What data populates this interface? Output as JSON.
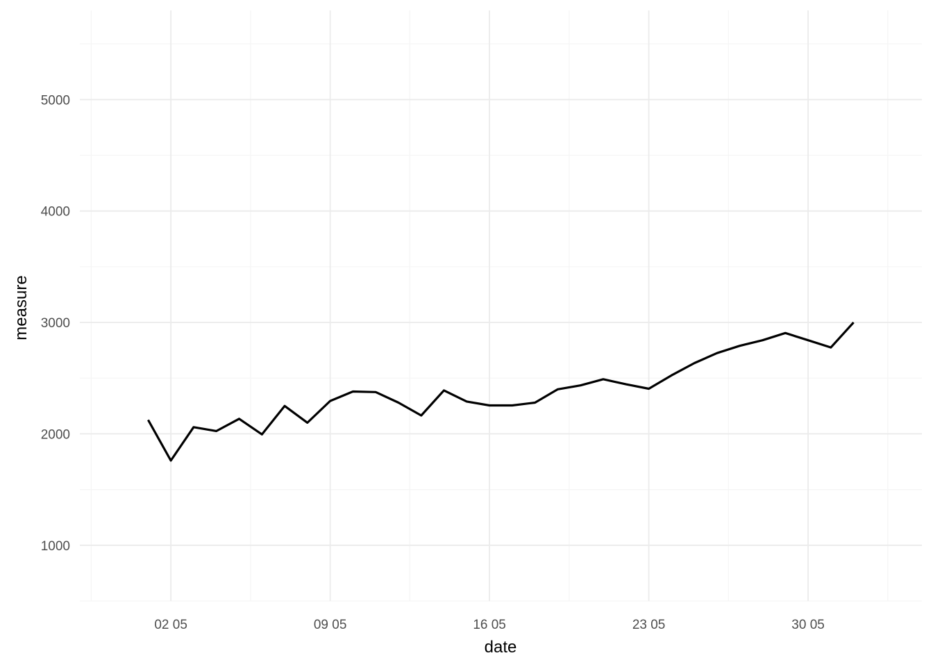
{
  "chart_data": {
    "type": "line",
    "xlabel": "date",
    "ylabel": "measure",
    "x_tick_labels": [
      "02 05",
      "09 05",
      "16 05",
      "23 05",
      "30 05"
    ],
    "x_tick_dates": [
      "2021-05-02",
      "2021-05-09",
      "2021-05-16",
      "2021-05-23",
      "2021-05-30"
    ],
    "y_ticks": [
      1000,
      2000,
      3000,
      4000,
      5000
    ],
    "xlim": [
      "2021-04-28",
      "2021-06-04"
    ],
    "ylim": [
      500,
      5800
    ],
    "grid": true,
    "legend": "none",
    "series": [
      {
        "color": "#000000",
        "x": [
          "2021-05-01",
          "2021-05-02",
          "2021-05-03",
          "2021-05-04",
          "2021-05-05",
          "2021-05-06",
          "2021-05-07",
          "2021-05-08",
          "2021-05-09",
          "2021-05-10",
          "2021-05-11",
          "2021-05-12",
          "2021-05-13",
          "2021-05-14",
          "2021-05-15",
          "2021-05-16",
          "2021-05-17",
          "2021-05-18",
          "2021-05-19",
          "2021-05-20",
          "2021-05-21",
          "2021-05-22",
          "2021-05-23",
          "2021-05-24",
          "2021-05-25",
          "2021-05-26",
          "2021-05-27",
          "2021-05-28",
          "2021-05-29",
          "2021-05-30",
          "2021-05-31",
          "2021-06-01"
        ],
        "values": [
          2125,
          1760,
          2060,
          2025,
          2135,
          1995,
          2250,
          2100,
          2295,
          2380,
          2375,
          2280,
          2165,
          2390,
          2290,
          2255,
          2255,
          2280,
          2400,
          2435,
          2490,
          2445,
          2405,
          2525,
          2635,
          2725,
          2790,
          2840,
          2905,
          2840,
          2775,
          3000
        ]
      }
    ]
  },
  "colors": {
    "background": "#ffffff",
    "grid_major": "#ebebeb",
    "grid_minor": "#f5f5f5",
    "line": "#000000",
    "tick_text": "#4d4d4d"
  }
}
